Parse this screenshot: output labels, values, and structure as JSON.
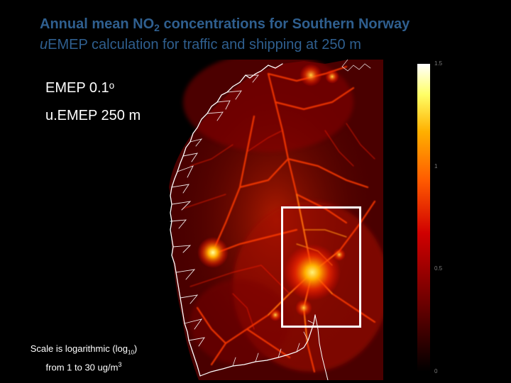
{
  "title": {
    "line1_prefix": "Annual mean NO",
    "line1_sub": "2",
    "line1_suffix": " concentrations for Southern Norway",
    "line2_italic": "u",
    "line2_rest": "EMEP calculation for traffic and shipping at 250 m"
  },
  "labels": {
    "emep": "EMEP 0.1ᵒ",
    "uemep": "u.EMEP 250 m"
  },
  "caption": {
    "line1_prefix": "Scale is logarithmic (log",
    "line1_sub": "10",
    "line1_suffix": ")",
    "line2_prefix": "from 1 to 30 ug/m",
    "line2_sup": "3"
  },
  "colorbar": {
    "ticks": [
      {
        "label": "1.5",
        "value": 1.5
      },
      {
        "label": "1",
        "value": 1.0
      },
      {
        "label": "0.5",
        "value": 0.5
      },
      {
        "label": "0",
        "value": 0
      }
    ],
    "range": [
      0,
      1.5
    ],
    "colors": [
      "#000000",
      "#6b0000",
      "#d00000",
      "#ff5a00",
      "#ffb000",
      "#ffff66",
      "#ffffff"
    ]
  }
}
